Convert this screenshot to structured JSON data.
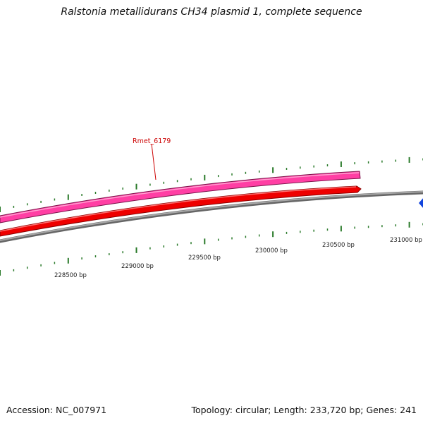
{
  "title": "Ralstonia metallidurans CH34 plasmid 1, complete sequence",
  "footer": {
    "accession": "Accession: NC_007971",
    "summary": "Topology: circular; Length: 233,720 bp; Genes: 241"
  },
  "gene_label": "Rmet_6179",
  "ruler_labels": [
    "228500 bp",
    "229000 bp",
    "229500 bp",
    "230000 bp",
    "230500 bp",
    "231000 bp"
  ],
  "colors": {
    "gene_forward": "#ff3fa4",
    "gene_reverse": "#ee0000",
    "backbone": "#888888",
    "ticks": "#2a7a2a",
    "label_line": "#cc0000",
    "marker": "#1144dd"
  }
}
